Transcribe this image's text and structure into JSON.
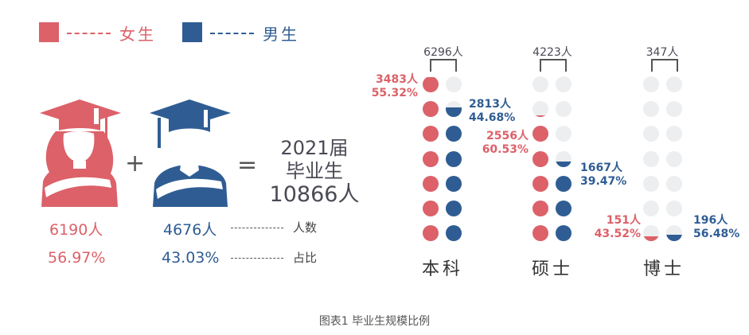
{
  "colors": {
    "female": "#dc6169",
    "male": "#2f5d93",
    "empty": "#eceef0",
    "text": "#4a4a55"
  },
  "legend": {
    "female": {
      "label": "女生",
      "swatch_icon": "square-icon"
    },
    "male": {
      "label": "男生",
      "swatch_icon": "square-icon"
    }
  },
  "summary": {
    "female": {
      "count": "6190人",
      "percent": "56.97%",
      "icon": "female-graduate-icon"
    },
    "male": {
      "count": "4676人",
      "percent": "43.03%",
      "icon": "male-graduate-icon"
    },
    "plus": "+",
    "equals": "=",
    "total_line1": "2021届",
    "total_line2": "毕业生",
    "total_line3": "10866人",
    "guide_count_label": "人数",
    "guide_percent_label": "占比"
  },
  "groups": [
    {
      "name": "本科",
      "total": "6296人",
      "female_label": "3483人",
      "female_pct": "55.32%",
      "male_label": "2813人",
      "male_pct": "44.68%"
    },
    {
      "name": "硕士",
      "total": "4223人",
      "female_label": "2556人",
      "female_pct": "60.53%",
      "male_label": "1667人",
      "male_pct": "39.47%"
    },
    {
      "name": "博士",
      "total": "347人",
      "female_label": "151人",
      "female_pct": "43.52%",
      "male_label": "196人",
      "male_pct": "56.48%"
    }
  ],
  "caption": "图表1 毕业生规模比例",
  "chart_data": {
    "type": "bar",
    "title": "图表1 毕业生规模比例",
    "subtitle": "2021届毕业生 10866人",
    "categories": [
      "本科",
      "硕士",
      "博士"
    ],
    "series": [
      {
        "name": "女生",
        "values": [
          3483,
          2556,
          151
        ],
        "percent": [
          55.32,
          60.53,
          43.52
        ]
      },
      {
        "name": "男生",
        "values": [
          2813,
          1667,
          196
        ],
        "percent": [
          44.68,
          39.47,
          56.48
        ]
      }
    ],
    "totals": [
      6296,
      4223,
      347
    ],
    "overall": {
      "女生": {
        "count": 6190,
        "percent": 56.97
      },
      "男生": {
        "count": 4676,
        "percent": 43.03
      },
      "total": 10866
    },
    "encoding": "dot columns, 7 dots per column, ~500 people per dot, filled from bottom",
    "legend_position": "top-left"
  }
}
